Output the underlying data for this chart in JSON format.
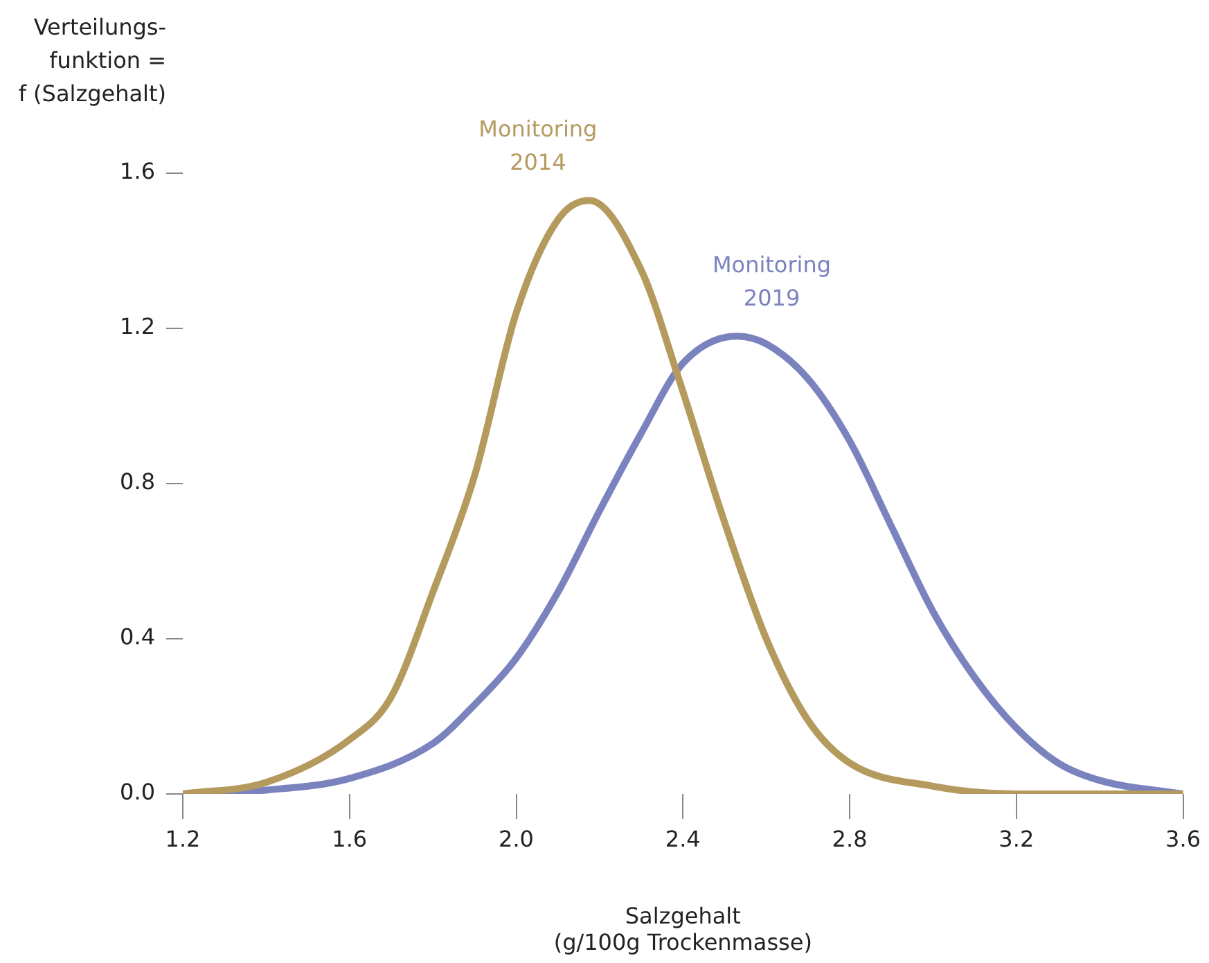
{
  "chart_data": {
    "type": "line",
    "xlabel": "Salzgehalt\n(g/100g Trockenmasse)",
    "ylabel": "Verteilungs-\nfunktion =\nf (Salzgehalt)",
    "xlim": [
      1.2,
      3.6
    ],
    "xticks": [
      1.2,
      1.6,
      {
        "value": 2,
        "label": "2.0"
      },
      2.4,
      2.8,
      3.2,
      3.6
    ],
    "ylim": [
      0,
      1.6
    ],
    "yticks": [
      {
        "value": 0,
        "label": "0.0"
      },
      0.4,
      0.8,
      1.2,
      1.6
    ],
    "grid": false,
    "legend": false,
    "marker": "none",
    "line_style": "solid",
    "series": [
      {
        "name": "Monitoring 2014",
        "color": "#b59a5e",
        "x": [
          1.2,
          1.4,
          1.6,
          1.7,
          1.8,
          1.9,
          2.0,
          2.1,
          2.175,
          2.3,
          2.39,
          2.5,
          2.6,
          2.7,
          2.8,
          3.0,
          3.2,
          3.6
        ],
        "values": [
          0,
          0.03,
          0.14,
          0.25,
          0.52,
          0.82,
          1.24,
          1.48,
          1.53,
          1.35,
          1.07,
          0.7,
          0.4,
          0.19,
          0.08,
          0.02,
          0,
          0
        ]
      },
      {
        "name": "Monitoring 2019",
        "color": "#7b83bf",
        "x": [
          1.2,
          1.4,
          1.6,
          1.8,
          1.9,
          2.0,
          2.1,
          2.2,
          2.3,
          2.4,
          2.53,
          2.6,
          2.7,
          2.8,
          2.9,
          3.0,
          3.1,
          3.2,
          3.3,
          3.4,
          3.6
        ],
        "values": [
          0,
          0.01,
          0.04,
          0.13,
          0.23,
          0.35,
          0.52,
          0.73,
          0.93,
          1.11,
          1.18,
          1.16,
          1.07,
          0.91,
          0.69,
          0.47,
          0.3,
          0.17,
          0.08,
          0.035,
          0
        ]
      }
    ]
  }
}
